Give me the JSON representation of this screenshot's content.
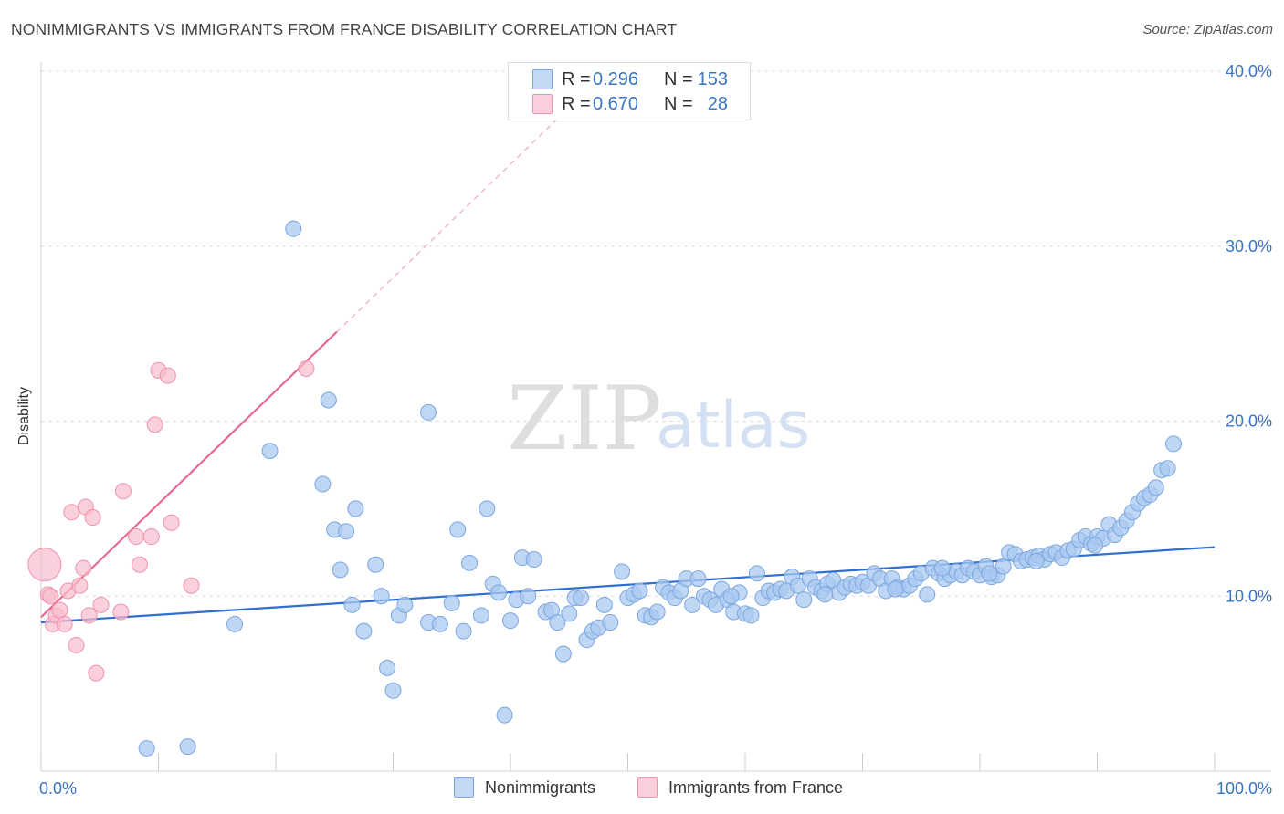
{
  "header": {
    "title": "NONIMMIGRANTS VS IMMIGRANTS FROM FRANCE DISABILITY CORRELATION CHART",
    "source": "Source: ZipAtlas.com"
  },
  "watermark": {
    "zip": "ZIP",
    "atlas": "atlas"
  },
  "colors": {
    "blue_fill": "#a9c8f0",
    "blue_stroke": "#7aa7e0",
    "blue_line": "#2f6fd0",
    "pink_fill": "#f8bccd",
    "pink_stroke": "#f093ad",
    "pink_line": "#e8688f",
    "grid": "#dddddd",
    "axis_text": "#3a75c4"
  },
  "legend_box": {
    "rows": [
      {
        "r_label": "R =",
        "r_value": "0.296",
        "n_label": "N =",
        "n_value": "153",
        "color": "#a9c8f0"
      },
      {
        "r_label": "R =",
        "r_value": "0.670",
        "n_label": "N =",
        "n_value": "28",
        "color": "#f8bccd"
      }
    ]
  },
  "chart_data": {
    "type": "scatter",
    "title": "NONIMMIGRANTS VS IMMIGRANTS FROM FRANCE DISABILITY CORRELATION CHART",
    "xlabel": "",
    "ylabel": "Disability",
    "xlim": [
      0,
      100
    ],
    "ylim": [
      0,
      40
    ],
    "x_tick_labels": [
      "0.0%",
      "100.0%"
    ],
    "y_ticks": [
      10,
      20,
      30,
      40
    ],
    "y_tick_labels": [
      "10.0%",
      "20.0%",
      "30.0%",
      "40.0%"
    ],
    "legend": [
      "Nonimmigrants",
      "Immigrants from France"
    ],
    "series": [
      {
        "name": "Nonimmigrants",
        "color": "#a9c8f0",
        "trend": {
          "x": [
            0,
            100
          ],
          "y": [
            8.5,
            12.8
          ]
        },
        "points": [
          [
            9.0,
            1.3
          ],
          [
            12.5,
            1.4
          ],
          [
            21.5,
            31.0
          ],
          [
            24.0,
            16.4
          ],
          [
            19.5,
            18.3
          ],
          [
            24.5,
            21.2
          ],
          [
            33.0,
            20.5
          ],
          [
            16.5,
            8.4
          ],
          [
            25.0,
            13.8
          ],
          [
            25.5,
            11.5
          ],
          [
            26.0,
            13.7
          ],
          [
            26.5,
            9.5
          ],
          [
            26.8,
            15.0
          ],
          [
            27.5,
            8.0
          ],
          [
            28.5,
            11.8
          ],
          [
            29.0,
            10.0
          ],
          [
            29.5,
            5.9
          ],
          [
            30.0,
            4.6
          ],
          [
            30.5,
            8.9
          ],
          [
            31.0,
            9.5
          ],
          [
            33.0,
            8.5
          ],
          [
            34.0,
            8.4
          ],
          [
            35.0,
            9.6
          ],
          [
            35.5,
            13.8
          ],
          [
            36.0,
            8.0
          ],
          [
            36.5,
            11.9
          ],
          [
            37.5,
            8.9
          ],
          [
            38.0,
            15.0
          ],
          [
            38.5,
            10.7
          ],
          [
            39.0,
            10.2
          ],
          [
            39.5,
            3.2
          ],
          [
            40.0,
            8.6
          ],
          [
            40.5,
            9.8
          ],
          [
            41.0,
            12.2
          ],
          [
            41.5,
            10.0
          ],
          [
            42.0,
            12.1
          ],
          [
            43.0,
            9.1
          ],
          [
            43.5,
            9.2
          ],
          [
            44.0,
            8.5
          ],
          [
            44.5,
            6.7
          ],
          [
            45.0,
            9.0
          ],
          [
            45.5,
            9.9
          ],
          [
            46.0,
            9.9
          ],
          [
            46.5,
            7.5
          ],
          [
            47.0,
            8.0
          ],
          [
            47.5,
            8.2
          ],
          [
            48.0,
            9.5
          ],
          [
            48.5,
            8.5
          ],
          [
            49.5,
            11.4
          ],
          [
            50.0,
            9.9
          ],
          [
            50.5,
            10.1
          ],
          [
            51.0,
            10.3
          ],
          [
            51.5,
            8.9
          ],
          [
            52.0,
            8.8
          ],
          [
            52.5,
            9.1
          ],
          [
            53.0,
            10.5
          ],
          [
            53.5,
            10.2
          ],
          [
            54.0,
            9.9
          ],
          [
            54.5,
            10.3
          ],
          [
            55.0,
            11.0
          ],
          [
            55.5,
            9.5
          ],
          [
            56.0,
            11.0
          ],
          [
            56.5,
            10.0
          ],
          [
            57.0,
            9.8
          ],
          [
            57.5,
            9.5
          ],
          [
            58.0,
            10.4
          ],
          [
            58.5,
            9.8
          ],
          [
            59.0,
            9.1
          ],
          [
            59.5,
            10.2
          ],
          [
            60.0,
            9.0
          ],
          [
            60.5,
            8.9
          ],
          [
            61.0,
            11.3
          ],
          [
            61.5,
            9.9
          ],
          [
            62.0,
            10.3
          ],
          [
            62.5,
            10.2
          ],
          [
            63.0,
            10.4
          ],
          [
            63.5,
            10.3
          ],
          [
            64.0,
            11.1
          ],
          [
            64.5,
            10.6
          ],
          [
            65.0,
            9.8
          ],
          [
            65.5,
            11.0
          ],
          [
            66.0,
            10.5
          ],
          [
            66.5,
            10.3
          ],
          [
            67.0,
            10.7
          ],
          [
            67.5,
            10.9
          ],
          [
            68.0,
            10.2
          ],
          [
            68.5,
            10.5
          ],
          [
            69.0,
            10.7
          ],
          [
            69.5,
            10.6
          ],
          [
            70.0,
            10.8
          ],
          [
            70.5,
            10.6
          ],
          [
            71.0,
            11.3
          ],
          [
            71.5,
            11.0
          ],
          [
            72.0,
            10.3
          ],
          [
            72.5,
            11.0
          ],
          [
            73.0,
            10.5
          ],
          [
            73.5,
            10.4
          ],
          [
            74.0,
            10.6
          ],
          [
            74.5,
            11.0
          ],
          [
            75.0,
            11.3
          ],
          [
            75.5,
            10.1
          ],
          [
            76.0,
            11.6
          ],
          [
            76.5,
            11.3
          ],
          [
            77.0,
            11.0
          ],
          [
            77.5,
            11.2
          ],
          [
            78.0,
            11.4
          ],
          [
            78.5,
            11.2
          ],
          [
            79.0,
            11.6
          ],
          [
            79.5,
            11.4
          ],
          [
            80.0,
            11.2
          ],
          [
            80.5,
            11.7
          ],
          [
            81.0,
            11.1
          ],
          [
            81.5,
            11.2
          ],
          [
            82.0,
            11.7
          ],
          [
            82.5,
            12.5
          ],
          [
            83.0,
            12.4
          ],
          [
            83.5,
            12.0
          ],
          [
            84.0,
            12.1
          ],
          [
            84.5,
            12.2
          ],
          [
            85.0,
            12.3
          ],
          [
            85.5,
            12.1
          ],
          [
            86.0,
            12.4
          ],
          [
            86.5,
            12.5
          ],
          [
            87.0,
            12.2
          ],
          [
            87.5,
            12.6
          ],
          [
            88.0,
            12.7
          ],
          [
            88.5,
            13.2
          ],
          [
            89.0,
            13.4
          ],
          [
            89.5,
            13.0
          ],
          [
            90.0,
            13.4
          ],
          [
            90.5,
            13.3
          ],
          [
            91.0,
            14.1
          ],
          [
            91.5,
            13.5
          ],
          [
            92.0,
            13.9
          ],
          [
            92.5,
            14.3
          ],
          [
            93.0,
            14.8
          ],
          [
            93.5,
            15.3
          ],
          [
            94.0,
            15.6
          ],
          [
            94.5,
            15.8
          ],
          [
            95.0,
            16.2
          ],
          [
            95.5,
            17.2
          ],
          [
            96.0,
            17.3
          ],
          [
            96.5,
            18.7
          ],
          [
            72.8,
            10.4
          ],
          [
            58.8,
            10.0
          ],
          [
            66.8,
            10.1
          ],
          [
            84.8,
            12.0
          ],
          [
            89.8,
            12.9
          ],
          [
            76.8,
            11.6
          ],
          [
            80.8,
            11.3
          ]
        ]
      },
      {
        "name": "Immigrants from France",
        "color": "#f8bccd",
        "trend": {
          "x": [
            0,
            25.2
          ],
          "y": [
            8.8,
            25.1
          ]
        },
        "trend_dashed": {
          "x": [
            25.2,
            44.5
          ],
          "y": [
            25.1,
            37.6
          ]
        },
        "points": [
          [
            0.3,
            11.8
          ],
          [
            0.6,
            10.1
          ],
          [
            0.8,
            10.0
          ],
          [
            1.0,
            8.4
          ],
          [
            1.3,
            8.9
          ],
          [
            1.6,
            9.2
          ],
          [
            2.0,
            8.4
          ],
          [
            2.3,
            10.3
          ],
          [
            2.6,
            14.8
          ],
          [
            3.0,
            7.2
          ],
          [
            3.3,
            10.6
          ],
          [
            3.6,
            11.6
          ],
          [
            3.8,
            15.1
          ],
          [
            4.1,
            8.9
          ],
          [
            4.4,
            14.5
          ],
          [
            4.7,
            5.6
          ],
          [
            5.1,
            9.5
          ],
          [
            6.8,
            9.1
          ],
          [
            7.0,
            16.0
          ],
          [
            8.1,
            13.4
          ],
          [
            8.4,
            11.8
          ],
          [
            9.4,
            13.4
          ],
          [
            9.7,
            19.8
          ],
          [
            10.0,
            22.9
          ],
          [
            10.8,
            22.6
          ],
          [
            11.1,
            14.2
          ],
          [
            12.8,
            10.6
          ],
          [
            22.6,
            23.0
          ]
        ]
      }
    ]
  }
}
